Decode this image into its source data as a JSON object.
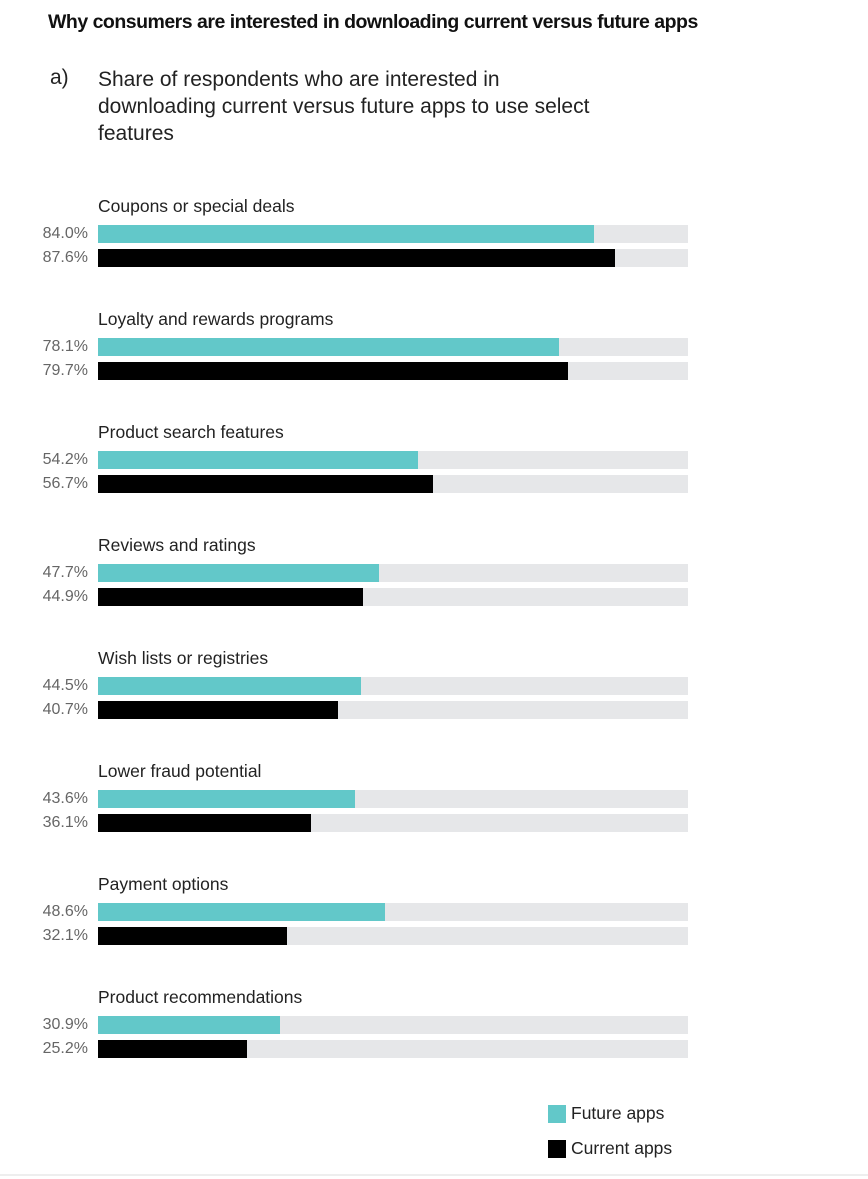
{
  "title": "Why consumers are interested in downloading current versus future apps",
  "subtitle_letter": "a)",
  "subtitle": "Share of respondents who are interested in downloading current versus future apps to use select features",
  "colors": {
    "future": "#62c8c9",
    "current": "#000000",
    "track": "#e6e7e9"
  },
  "chart_data": {
    "type": "bar",
    "orientation": "horizontal",
    "categories": [
      "Coupons or special deals",
      "Loyalty and rewards programs",
      "Product search features",
      "Reviews and ratings",
      "Wish lists or registries",
      "Lower fraud potential",
      "Payment options",
      "Product recommendations"
    ],
    "series": [
      {
        "name": "Future apps",
        "values": [
          84.0,
          78.1,
          54.2,
          47.7,
          44.5,
          43.6,
          48.6,
          30.9
        ],
        "labels": [
          "84.0%",
          "78.1%",
          "54.2%",
          "47.7%",
          "44.5%",
          "43.6%",
          "48.6%",
          "30.9%"
        ]
      },
      {
        "name": "Current apps",
        "values": [
          87.6,
          79.7,
          56.7,
          44.9,
          40.7,
          36.1,
          32.1,
          25.2
        ],
        "labels": [
          "87.6%",
          "79.7%",
          "56.7%",
          "44.9%",
          "40.7%",
          "36.1%",
          "32.1%",
          "25.2%"
        ]
      }
    ],
    "xlim": [
      0,
      100
    ],
    "legend": {
      "placement": "bottom-right",
      "entries": [
        "Future apps",
        "Current apps"
      ]
    }
  }
}
